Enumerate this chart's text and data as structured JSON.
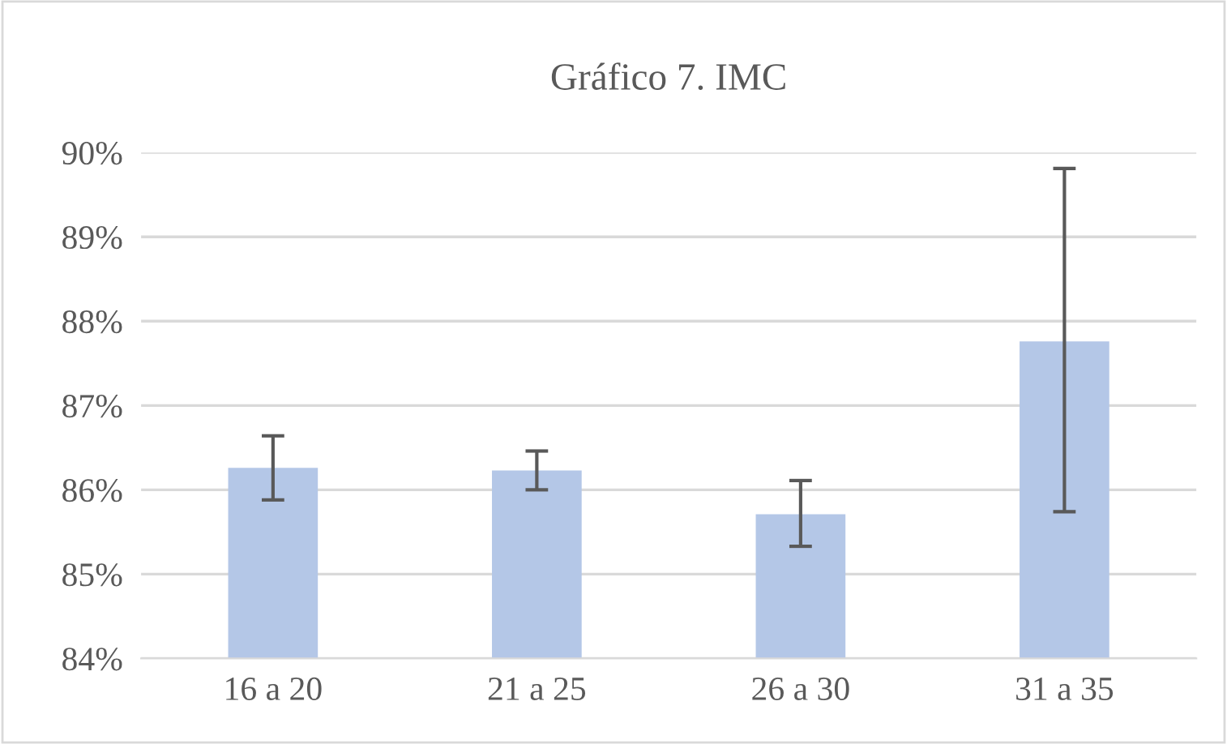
{
  "chart_data": {
    "type": "bar",
    "title": "Gráfico 7. IMC",
    "categories": [
      "16 a 20",
      "21 a 25",
      "26 a 30",
      "31 a 35"
    ],
    "values": [
      86.26,
      86.23,
      85.71,
      87.76
    ],
    "errors": [
      [
        85.88,
        86.64
      ],
      [
        86.0,
        86.46
      ],
      [
        85.33,
        86.11
      ],
      [
        85.74,
        89.81
      ]
    ],
    "color": "#b4c7e7",
    "ylim": [
      84,
      90
    ],
    "yticks": [
      {
        "value": 84,
        "label": "84%"
      },
      {
        "value": 85,
        "label": "85%"
      },
      {
        "value": 86,
        "label": "86%"
      },
      {
        "value": 87,
        "label": "87%"
      },
      {
        "value": 88,
        "label": "88%"
      },
      {
        "value": 89,
        "label": "89%"
      },
      {
        "value": 90,
        "label": "90%"
      }
    ],
    "grid": "y",
    "legend": false
  }
}
